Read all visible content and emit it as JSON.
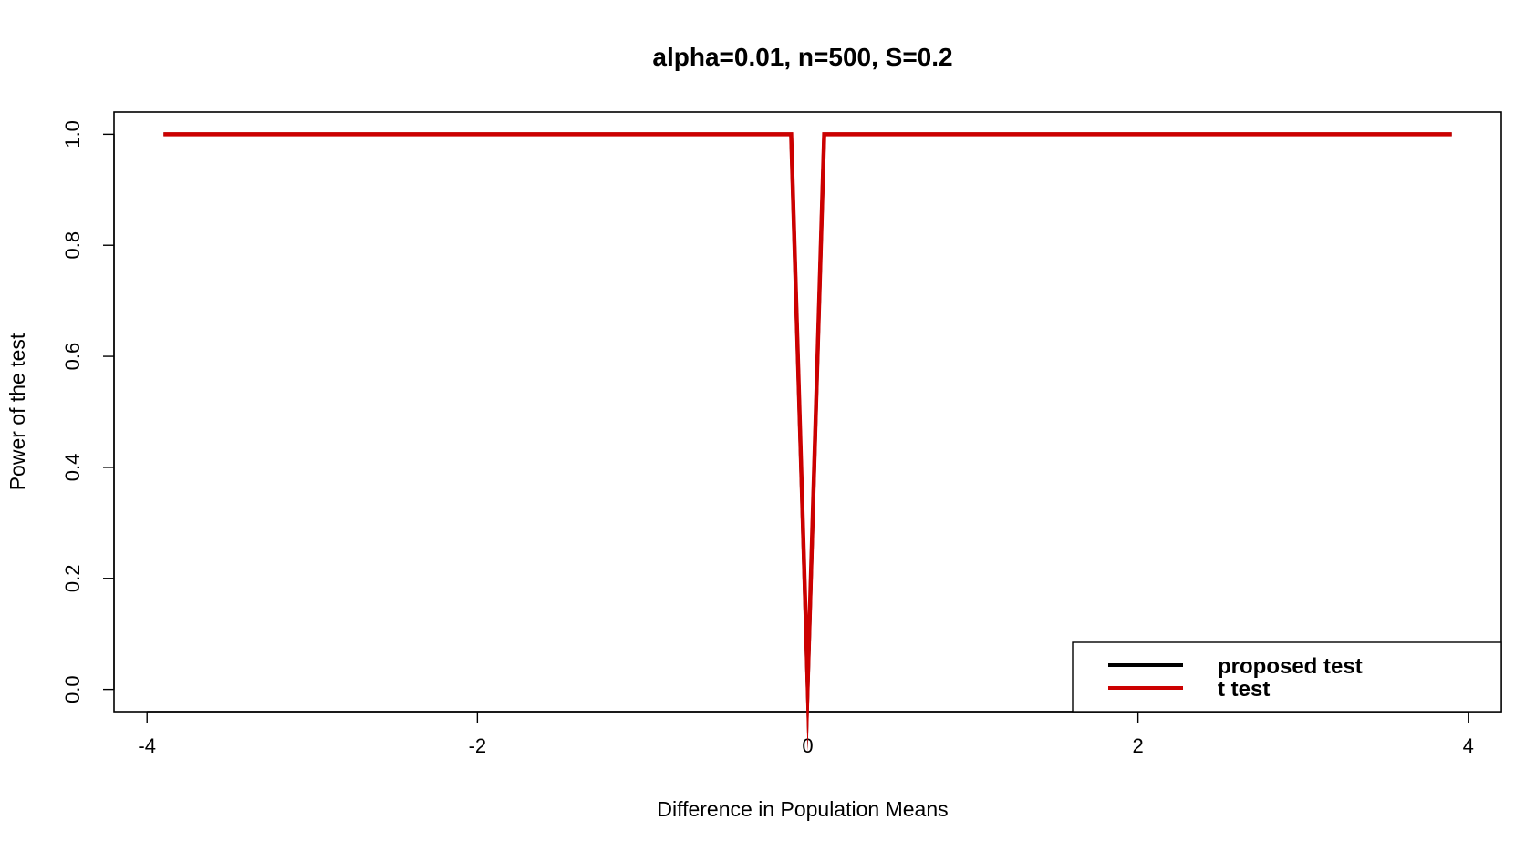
{
  "chart_data": {
    "type": "line",
    "title": "alpha=0.01, n=500, S=0.2",
    "xlabel": "Difference in Population Means",
    "ylabel": "Power of the test",
    "xlim": [
      -4.2,
      4.2
    ],
    "ylim": [
      -0.04,
      1.04
    ],
    "x_ticks": [
      -4,
      -2,
      0,
      2,
      4
    ],
    "x_tick_labels": [
      "-4",
      "-2",
      "0",
      "2",
      "4"
    ],
    "y_ticks": [
      0.0,
      0.2,
      0.4,
      0.6,
      0.8,
      1.0
    ],
    "y_tick_labels": [
      "0.0",
      "0.2",
      "0.4",
      "0.6",
      "0.8",
      "1.0"
    ],
    "grid": false,
    "legend_position": "bottom-right",
    "series": [
      {
        "name": "proposed test",
        "color": "#000000",
        "x": [
          -3.9,
          -0.1,
          0.0,
          0.1,
          3.9
        ],
        "y": [
          1.0,
          1.0,
          0.003,
          1.0,
          1.0
        ]
      },
      {
        "name": "t test",
        "color": "#cc0000",
        "x": [
          -3.9,
          -0.1,
          0.0,
          0.1,
          3.9
        ],
        "y": [
          1.0,
          1.0,
          0.01,
          1.0,
          1.0
        ]
      }
    ]
  }
}
